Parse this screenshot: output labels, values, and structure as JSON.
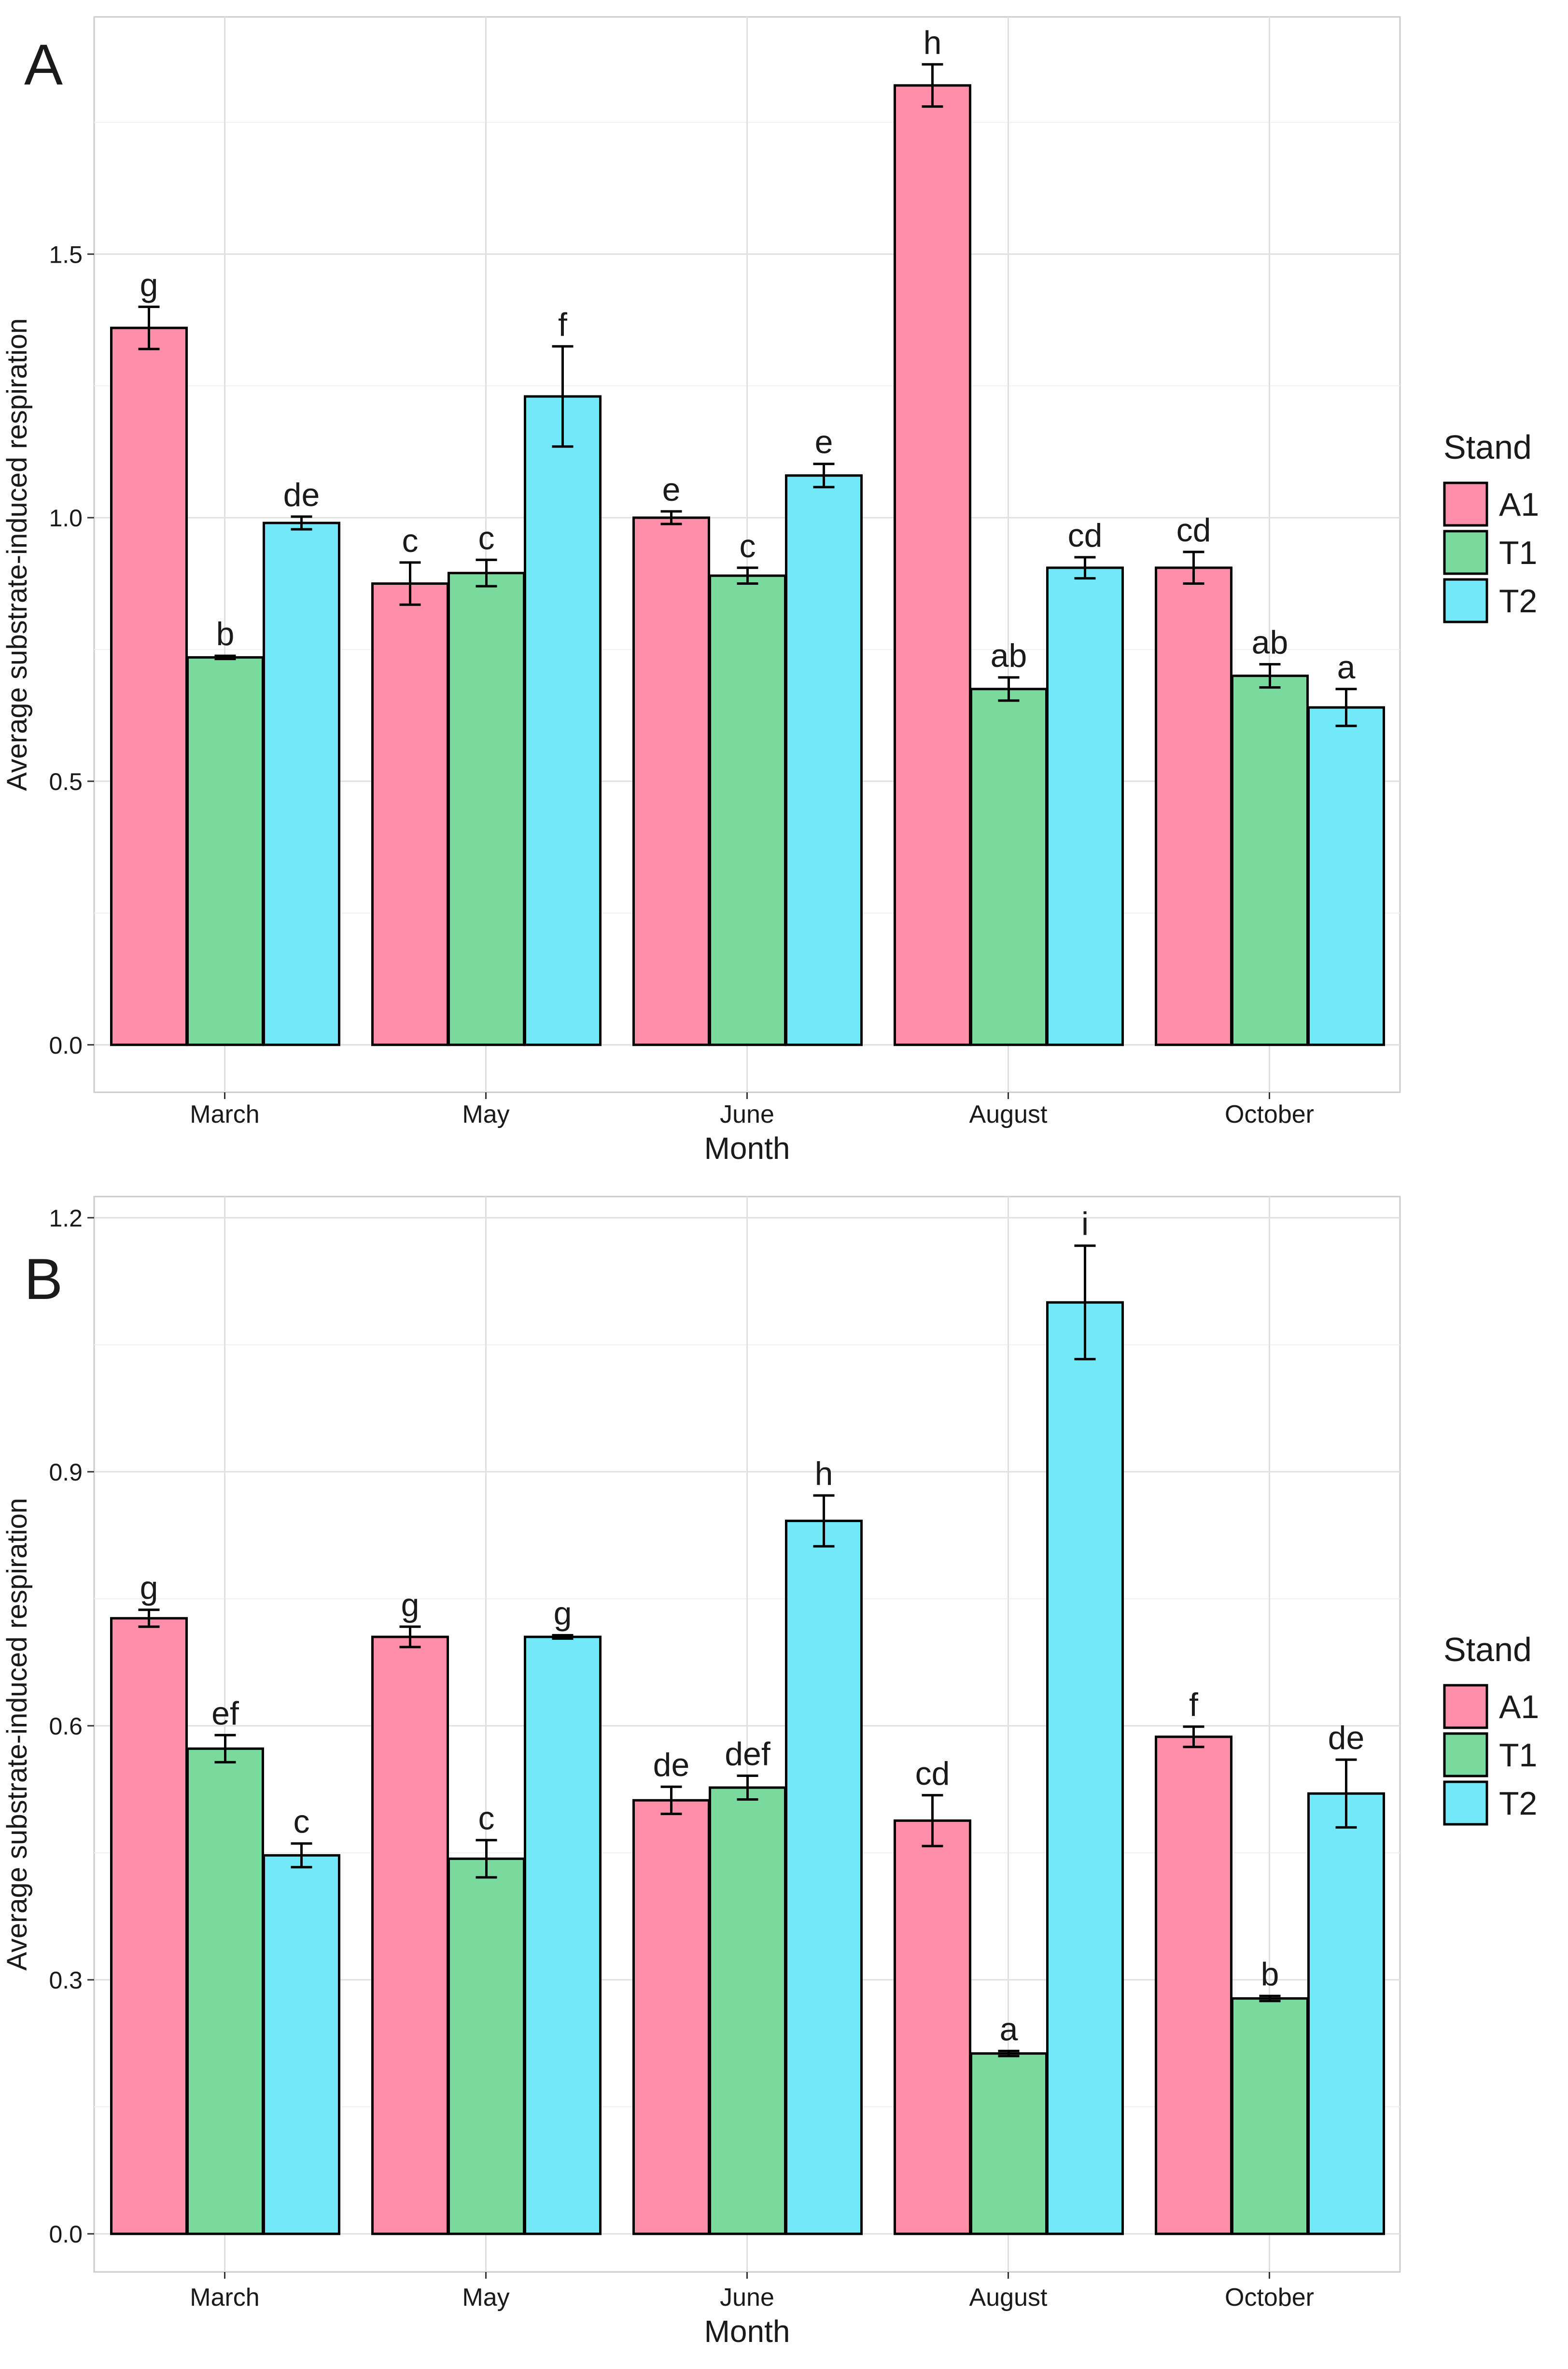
{
  "legend": {
    "title": "Stand",
    "entries": [
      {
        "label": "A1",
        "color": "#FF8FA8"
      },
      {
        "label": "T1",
        "color": "#7ADA9E"
      },
      {
        "label": "T2",
        "color": "#73E8F8"
      }
    ]
  },
  "chart_data": [
    {
      "panel": "A",
      "type": "bar",
      "xlabel": "Month",
      "ylabel": "Average substrate-induced respiration",
      "categories": [
        "March",
        "May",
        "June",
        "August",
        "October"
      ],
      "ylim": [
        -0.09,
        1.95
      ],
      "yticks": [
        0.0,
        0.5,
        1.0,
        1.5
      ],
      "ytick_labels": [
        "0.0",
        "0.5",
        "1.0",
        "1.5"
      ],
      "series": [
        {
          "name": "A1",
          "values": [
            1.36,
            0.875,
            1.0,
            1.82,
            0.905
          ],
          "errors": [
            0.04,
            0.04,
            0.012,
            0.04,
            0.03
          ],
          "letters": [
            "g",
            "c",
            "e",
            "h",
            "cd"
          ]
        },
        {
          "name": "T1",
          "values": [
            0.735,
            0.895,
            0.89,
            0.675,
            0.7
          ],
          "errors": [
            0.003,
            0.025,
            0.015,
            0.022,
            0.022
          ],
          "letters": [
            "b",
            "c",
            "c",
            "ab",
            "ab"
          ]
        },
        {
          "name": "T2",
          "values": [
            0.99,
            1.23,
            1.08,
            0.905,
            0.64
          ],
          "errors": [
            0.012,
            0.095,
            0.022,
            0.02,
            0.035
          ],
          "letters": [
            "de",
            "f",
            "e",
            "cd",
            "a"
          ]
        }
      ]
    },
    {
      "panel": "B",
      "type": "bar",
      "xlabel": "Month",
      "ylabel": "Average substrate-induced respiration",
      "categories": [
        "March",
        "May",
        "June",
        "August",
        "October"
      ],
      "ylim": [
        -0.045,
        1.225
      ],
      "yticks": [
        0.0,
        0.3,
        0.6,
        0.9,
        1.2
      ],
      "ytick_labels": [
        "0.0",
        "0.3",
        "0.6",
        "0.9",
        "1.2"
      ],
      "series": [
        {
          "name": "A1",
          "values": [
            0.727,
            0.705,
            0.512,
            0.488,
            0.587
          ],
          "errors": [
            0.01,
            0.012,
            0.016,
            0.03,
            0.012
          ],
          "letters": [
            "g",
            "g",
            "de",
            "cd",
            "f"
          ]
        },
        {
          "name": "T1",
          "values": [
            0.573,
            0.443,
            0.527,
            0.213,
            0.278
          ],
          "errors": [
            0.016,
            0.022,
            0.014,
            0.003,
            0.003
          ],
          "letters": [
            "ef",
            "c",
            "def",
            "a",
            "b"
          ]
        },
        {
          "name": "T2",
          "values": [
            0.447,
            0.705,
            0.842,
            1.1,
            0.52
          ],
          "errors": [
            0.014,
            0.002,
            0.03,
            0.067,
            0.04
          ],
          "letters": [
            "c",
            "g",
            "h",
            "i",
            "de"
          ]
        }
      ]
    }
  ]
}
